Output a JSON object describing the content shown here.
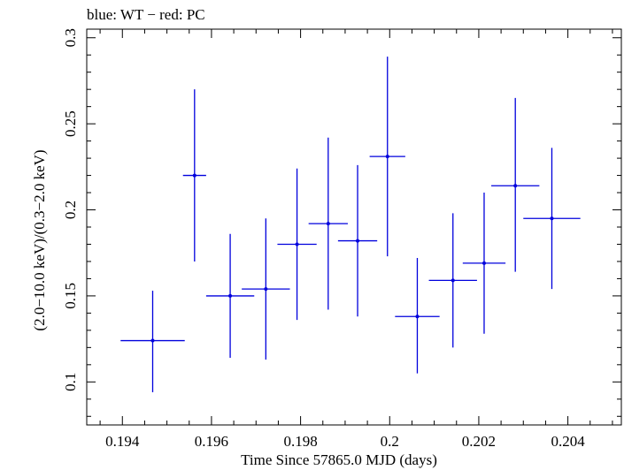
{
  "chart_data": {
    "type": "scatter",
    "title": "blue: WT − red: PC",
    "xlabel": "Time Since 57865.0 MJD (days)",
    "ylabel": "(2.0−10.0 keV)/(0.3−2.0 keV)",
    "xlim": [
      0.1932,
      0.2052
    ],
    "ylim": [
      0.075,
      0.305
    ],
    "x_ticks": [
      0.194,
      0.196,
      0.198,
      0.2,
      0.202,
      0.204
    ],
    "x_tick_labels": [
      "0.194",
      "0.196",
      "0.198",
      "0.2",
      "0.202",
      "0.204"
    ],
    "y_ticks": [
      0.1,
      0.15,
      0.2,
      0.25,
      0.3
    ],
    "y_tick_labels": [
      "0.1",
      "0.15",
      "0.2",
      "0.25",
      "0.3"
    ],
    "grid": false,
    "series": [
      {
        "color": "#0000dd",
        "points": [
          {
            "x": 0.19468,
            "y": 0.124,
            "xerr": 0.00072,
            "yerr_low": 0.03,
            "yerr_high": 0.029
          },
          {
            "x": 0.19562,
            "y": 0.22,
            "xerr": 0.00026,
            "yerr_low": 0.05,
            "yerr_high": 0.05
          },
          {
            "x": 0.19642,
            "y": 0.15,
            "xerr": 0.00054,
            "yerr_low": 0.036,
            "yerr_high": 0.036
          },
          {
            "x": 0.19722,
            "y": 0.154,
            "xerr": 0.00054,
            "yerr_low": 0.041,
            "yerr_high": 0.041
          },
          {
            "x": 0.19792,
            "y": 0.18,
            "xerr": 0.00044,
            "yerr_low": 0.044,
            "yerr_high": 0.044
          },
          {
            "x": 0.19862,
            "y": 0.192,
            "xerr": 0.00044,
            "yerr_low": 0.05,
            "yerr_high": 0.05
          },
          {
            "x": 0.19928,
            "y": 0.182,
            "xerr": 0.00044,
            "yerr_low": 0.044,
            "yerr_high": 0.044
          },
          {
            "x": 0.19995,
            "y": 0.231,
            "xerr": 0.0004,
            "yerr_low": 0.058,
            "yerr_high": 0.058
          },
          {
            "x": 0.20062,
            "y": 0.138,
            "xerr": 0.0005,
            "yerr_low": 0.033,
            "yerr_high": 0.034
          },
          {
            "x": 0.20142,
            "y": 0.159,
            "xerr": 0.00054,
            "yerr_low": 0.039,
            "yerr_high": 0.039
          },
          {
            "x": 0.20212,
            "y": 0.169,
            "xerr": 0.00048,
            "yerr_low": 0.041,
            "yerr_high": 0.041
          },
          {
            "x": 0.20282,
            "y": 0.214,
            "xerr": 0.00054,
            "yerr_low": 0.05,
            "yerr_high": 0.051
          },
          {
            "x": 0.20364,
            "y": 0.195,
            "xerr": 0.00064,
            "yerr_low": 0.041,
            "yerr_high": 0.041
          }
        ]
      }
    ]
  }
}
